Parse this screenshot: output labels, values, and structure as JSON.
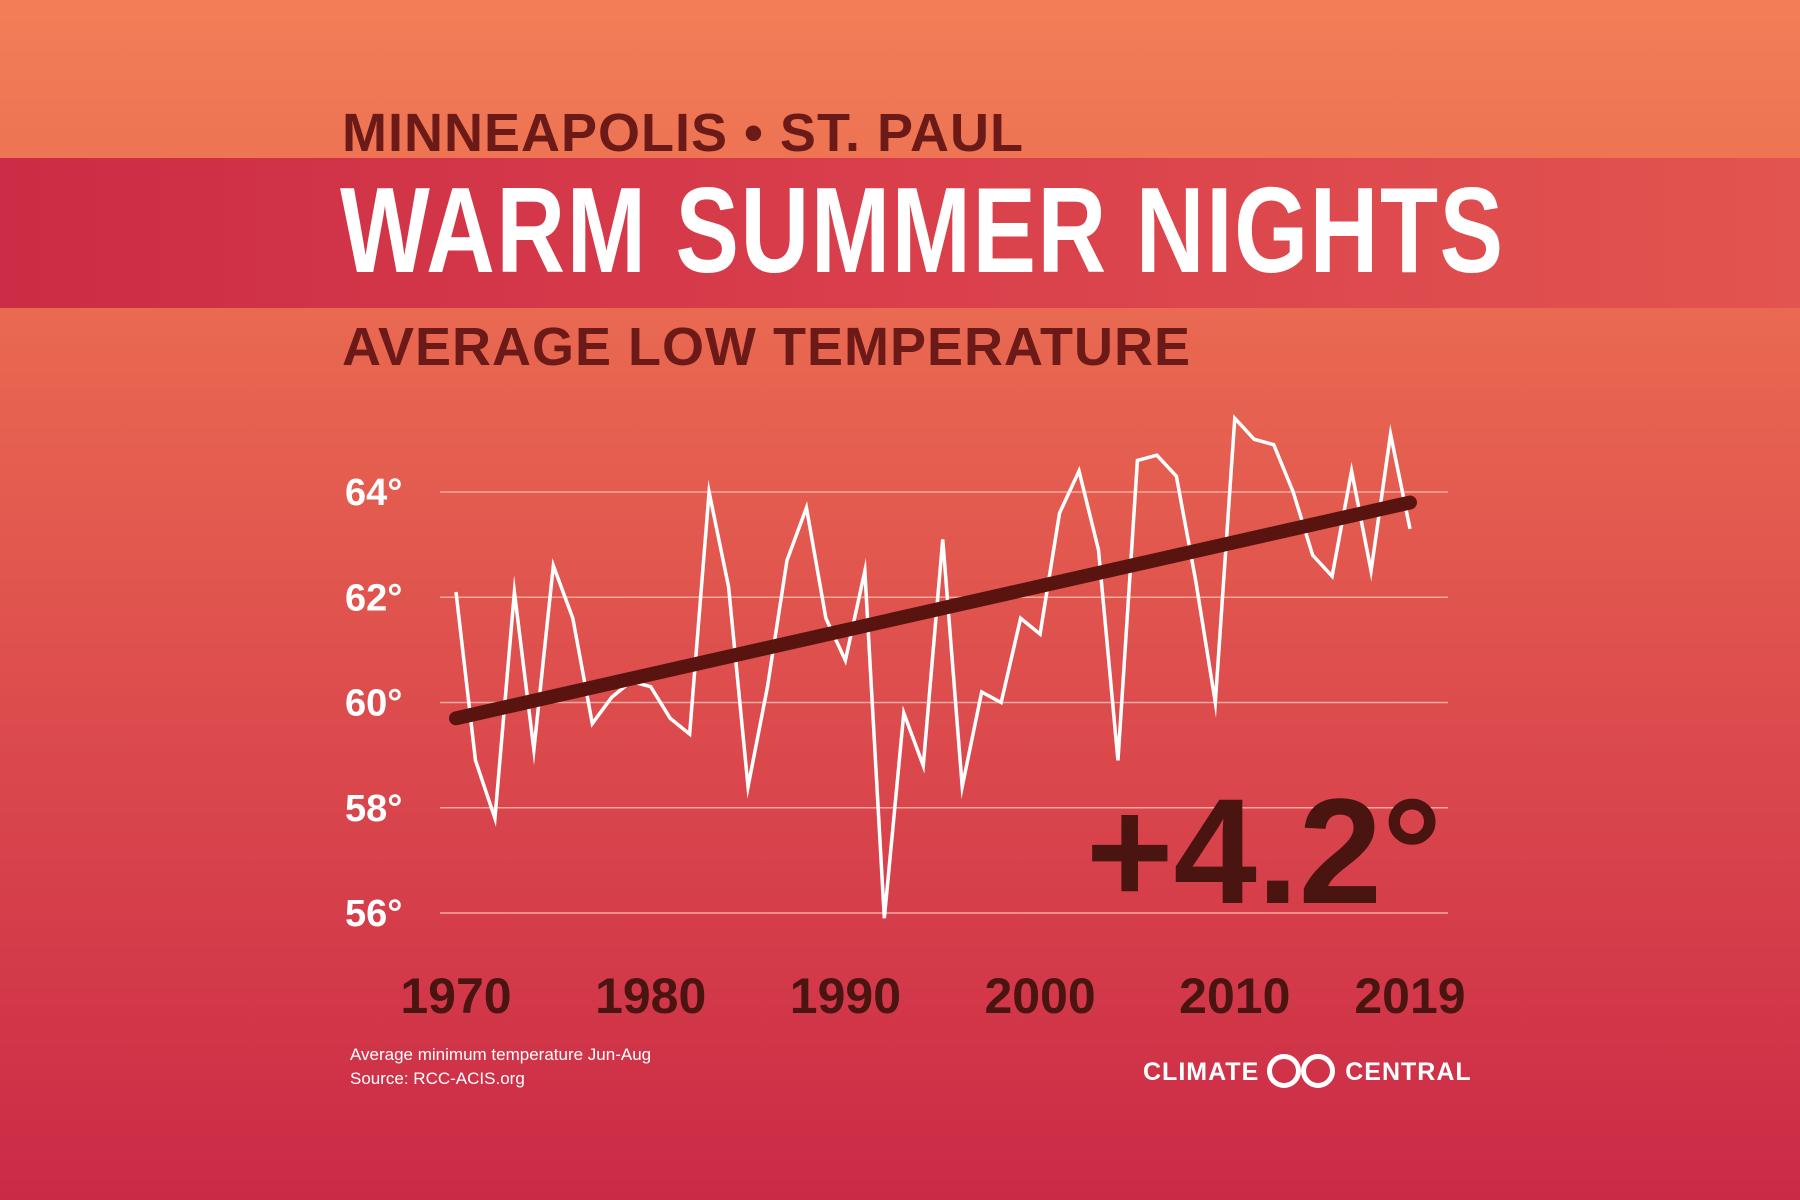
{
  "header": {
    "location": "MINNEAPOLIS • ST. PAUL",
    "headline": "WARM SUMMER NIGHTS",
    "subtitle": "AVERAGE LOW TEMPERATURE"
  },
  "callout": "+4.2°",
  "footnote": {
    "line1": "Average minimum temperature Jun-Aug",
    "line2": "Source: RCC-ACIS.org"
  },
  "logo": {
    "left": "CLIMATE",
    "right": "CENTRAL"
  },
  "colors": {
    "series": "#ffffff",
    "trend": "#5a140f",
    "grid": "#f3a9a0",
    "dark_text": "#4a1410"
  },
  "chart_data": {
    "type": "line",
    "title": "WARM SUMMER NIGHTS",
    "subtitle": "AVERAGE LOW TEMPERATURE",
    "ylim": [
      55,
      65.5
    ],
    "xlim": [
      1970,
      2019
    ],
    "yticks": [
      56,
      58,
      60,
      62,
      64
    ],
    "ytick_labels": [
      "56°",
      "58°",
      "60°",
      "62°",
      "64°"
    ],
    "xticks": [
      1970,
      1980,
      1990,
      2000,
      2010,
      2019
    ],
    "xtick_labels": [
      "1970",
      "1980",
      "1990",
      "2000",
      "2010",
      "2019"
    ],
    "grid": true,
    "x": [
      1970,
      1971,
      1972,
      1973,
      1974,
      1975,
      1976,
      1977,
      1978,
      1979,
      1980,
      1981,
      1982,
      1983,
      1984,
      1985,
      1986,
      1987,
      1988,
      1989,
      1990,
      1991,
      1992,
      1993,
      1994,
      1995,
      1996,
      1997,
      1998,
      1999,
      2000,
      2001,
      2002,
      2003,
      2004,
      2005,
      2006,
      2007,
      2008,
      2009,
      2010,
      2011,
      2012,
      2013,
      2014,
      2015,
      2016,
      2017,
      2018,
      2019
    ],
    "series": [
      {
        "values": [
          62.1,
          58.9,
          57.8,
          62.1,
          59.1,
          62.6,
          61.6,
          59.6,
          60.1,
          60.4,
          60.3,
          59.7,
          59.4,
          64.0,
          62.2,
          58.4,
          60.3,
          62.7,
          63.7,
          61.6,
          60.8,
          62.5,
          55.9,
          59.8,
          58.8,
          63.1,
          58.4,
          60.2,
          60.0,
          61.6,
          61.3,
          63.6,
          64.4,
          62.9,
          58.9,
          64.6,
          64.7,
          64.3,
          62.3,
          60.0,
          65.4,
          65.0,
          64.9,
          64.0,
          62.8,
          62.4,
          64.4,
          62.5,
          65.1,
          63.3
        ]
      },
      {
        "values": [
          59.7,
          63.8
        ],
        "x": [
          1970,
          2019
        ]
      }
    ]
  }
}
